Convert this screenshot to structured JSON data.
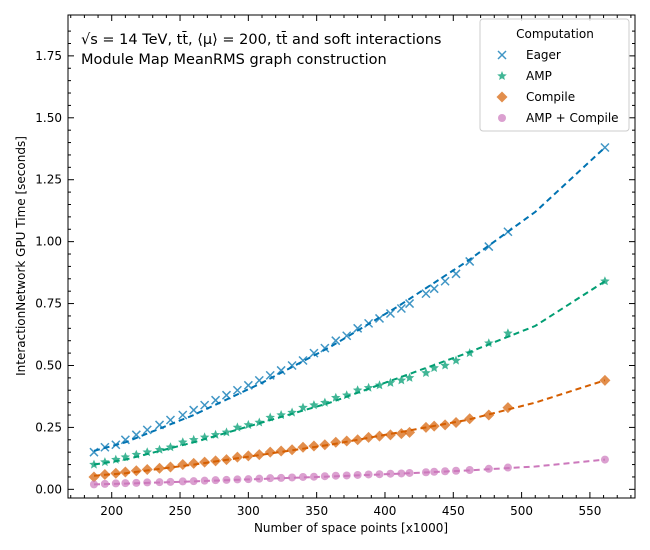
{
  "chart_data": {
    "type": "scatter",
    "xlabel": "Number of space points [x1000]",
    "ylabel": "InteractionNetwork GPU Time [seconds]",
    "xlim": [
      168,
      583
    ],
    "ylim": [
      -0.035,
      1.915
    ],
    "xticks": [
      200,
      250,
      300,
      350,
      400,
      450,
      500,
      550
    ],
    "yticks": [
      0.0,
      0.25,
      0.5,
      0.75,
      1.0,
      1.25,
      1.5,
      1.75
    ],
    "xtick_labels": [
      "200",
      "250",
      "300",
      "350",
      "400",
      "450",
      "500",
      "550"
    ],
    "ytick_labels": [
      "0.00",
      "0.25",
      "0.50",
      "0.75",
      "1.00",
      "1.25",
      "1.50",
      "1.75"
    ],
    "annotation_line1": "√s = 14 TeV, tt̄, ⟨μ⟩ = 200, tt̄ and soft interactions",
    "annotation_line2": "Module Map MeanRMS graph construction",
    "legend_title": "Computation",
    "legend_position": "top-right",
    "x": [
      187,
      195,
      203,
      210,
      218,
      226,
      235,
      243,
      252,
      260,
      268,
      276,
      284,
      292,
      300,
      308,
      316,
      324,
      332,
      340,
      348,
      356,
      364,
      372,
      380,
      388,
      396,
      404,
      412,
      418,
      430,
      436,
      444,
      452,
      462,
      476,
      490,
      561
    ],
    "series": [
      {
        "name": "Eager",
        "color": "#0173b2",
        "marker": "x",
        "values": [
          0.15,
          0.17,
          0.18,
          0.2,
          0.22,
          0.24,
          0.26,
          0.28,
          0.3,
          0.32,
          0.34,
          0.36,
          0.38,
          0.4,
          0.42,
          0.44,
          0.46,
          0.48,
          0.5,
          0.52,
          0.55,
          0.57,
          0.6,
          0.62,
          0.65,
          0.67,
          0.69,
          0.71,
          0.73,
          0.75,
          0.79,
          0.81,
          0.84,
          0.87,
          0.92,
          0.98,
          1.04,
          1.38
        ],
        "fit": [
          0.155,
          0.19,
          0.3,
          0.43,
          0.575,
          0.74,
          0.92,
          1.12,
          1.38
        ],
        "fit_x": [
          187,
          210,
          260,
          310,
          360,
          410,
          460,
          510,
          561
        ]
      },
      {
        "name": "AMP",
        "color": "#029e73",
        "marker": "star",
        "values": [
          0.1,
          0.11,
          0.12,
          0.13,
          0.14,
          0.15,
          0.16,
          0.17,
          0.19,
          0.2,
          0.21,
          0.22,
          0.23,
          0.25,
          0.26,
          0.27,
          0.29,
          0.3,
          0.31,
          0.33,
          0.34,
          0.35,
          0.37,
          0.38,
          0.4,
          0.41,
          0.42,
          0.43,
          0.44,
          0.45,
          0.47,
          0.49,
          0.5,
          0.52,
          0.55,
          0.59,
          0.63,
          0.84
        ],
        "fit": [
          0.1,
          0.12,
          0.19,
          0.27,
          0.35,
          0.45,
          0.55,
          0.66,
          0.84
        ],
        "fit_x": [
          187,
          210,
          260,
          310,
          360,
          410,
          460,
          510,
          561
        ]
      },
      {
        "name": "Compile",
        "color": "#d55e00",
        "marker": "diamond",
        "values": [
          0.05,
          0.06,
          0.065,
          0.07,
          0.075,
          0.08,
          0.085,
          0.09,
          0.1,
          0.105,
          0.11,
          0.115,
          0.12,
          0.13,
          0.135,
          0.14,
          0.15,
          0.155,
          0.16,
          0.17,
          0.175,
          0.18,
          0.19,
          0.195,
          0.2,
          0.21,
          0.215,
          0.22,
          0.225,
          0.23,
          0.25,
          0.255,
          0.26,
          0.27,
          0.285,
          0.3,
          0.33,
          0.44
        ],
        "fit": [
          0.055,
          0.065,
          0.1,
          0.14,
          0.18,
          0.23,
          0.28,
          0.35,
          0.44
        ],
        "fit_x": [
          187,
          210,
          260,
          310,
          360,
          410,
          460,
          510,
          561
        ]
      },
      {
        "name": "AMP + Compile",
        "color": "#cc78bc",
        "marker": "circle",
        "values": [
          0.02,
          0.022,
          0.024,
          0.025,
          0.026,
          0.028,
          0.029,
          0.03,
          0.032,
          0.033,
          0.035,
          0.037,
          0.038,
          0.04,
          0.041,
          0.043,
          0.045,
          0.046,
          0.048,
          0.05,
          0.051,
          0.053,
          0.055,
          0.056,
          0.058,
          0.06,
          0.061,
          0.063,
          0.064,
          0.066,
          0.069,
          0.071,
          0.073,
          0.075,
          0.078,
          0.083,
          0.088,
          0.12
        ],
        "fit": [
          0.02,
          0.023,
          0.032,
          0.042,
          0.052,
          0.063,
          0.076,
          0.092,
          0.12
        ],
        "fit_x": [
          187,
          210,
          260,
          310,
          360,
          410,
          460,
          510,
          561
        ]
      }
    ],
    "grid": false
  }
}
